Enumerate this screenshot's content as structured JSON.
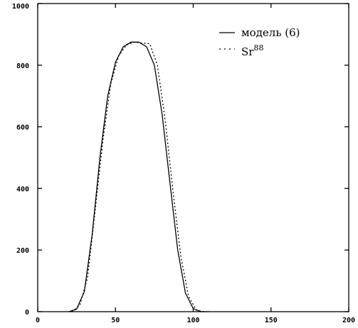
{
  "chart_data": {
    "type": "line",
    "title": "",
    "xlabel": "",
    "ylabel": "",
    "xlim": [
      0,
      200
    ],
    "ylim": [
      0,
      1000
    ],
    "x_ticks": [
      0,
      50,
      100,
      150,
      200
    ],
    "x_tick_labels": [
      "0",
      "50",
      "100",
      "150",
      "200"
    ],
    "y_ticks": [
      0,
      200,
      400,
      600,
      800,
      1000
    ],
    "y_tick_labels": [
      "0",
      "200",
      "400",
      "600",
      "800",
      "1000"
    ],
    "grid": false,
    "legend_position": "top-right",
    "series": [
      {
        "name": "модель (6)",
        "style": "solid",
        "color": "#000000",
        "x": [
          20,
          25,
          30,
          35,
          40,
          45,
          50,
          55,
          60,
          65,
          70,
          75,
          80,
          85,
          90,
          95,
          100,
          105,
          110
        ],
        "y": [
          0,
          8,
          65,
          250,
          500,
          700,
          810,
          860,
          875,
          875,
          860,
          800,
          640,
          420,
          200,
          60,
          10,
          0,
          0
        ]
      },
      {
        "name": "Sr 88",
        "legend_parts": [
          "Sr",
          "88"
        ],
        "style": "dotted",
        "color": "#000000",
        "x": [
          22,
          27,
          32,
          37,
          42,
          47,
          52,
          57,
          62,
          67,
          72,
          77,
          82,
          87,
          92,
          97,
          102,
          107
        ],
        "y": [
          0,
          20,
          110,
          330,
          560,
          740,
          830,
          865,
          875,
          872,
          870,
          800,
          620,
          390,
          180,
          50,
          5,
          0
        ]
      }
    ]
  }
}
